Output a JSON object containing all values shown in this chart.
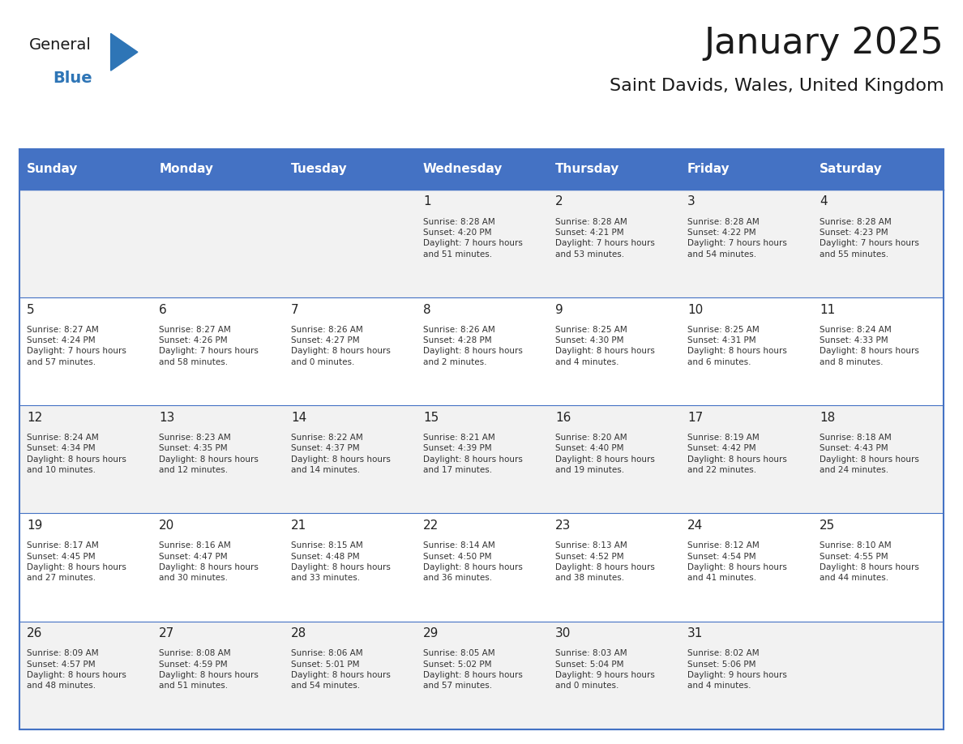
{
  "title": "January 2025",
  "subtitle": "Saint Davids, Wales, United Kingdom",
  "header_color": "#4472C4",
  "header_text_color": "#FFFFFF",
  "cell_bg_even": "#F2F2F2",
  "cell_bg_odd": "#FFFFFF",
  "border_color": "#4472C4",
  "day_names": [
    "Sunday",
    "Monday",
    "Tuesday",
    "Wednesday",
    "Thursday",
    "Friday",
    "Saturday"
  ],
  "title_color": "#1a1a1a",
  "subtitle_color": "#1a1a1a",
  "cell_text_color": "#333333",
  "day_num_color": "#222222",
  "calendar": [
    [
      null,
      null,
      null,
      {
        "day": 1,
        "sunrise": "8:28 AM",
        "sunset": "4:20 PM",
        "daylight": "7 hours and 51 minutes"
      },
      {
        "day": 2,
        "sunrise": "8:28 AM",
        "sunset": "4:21 PM",
        "daylight": "7 hours and 53 minutes"
      },
      {
        "day": 3,
        "sunrise": "8:28 AM",
        "sunset": "4:22 PM",
        "daylight": "7 hours and 54 minutes"
      },
      {
        "day": 4,
        "sunrise": "8:28 AM",
        "sunset": "4:23 PM",
        "daylight": "7 hours and 55 minutes"
      }
    ],
    [
      {
        "day": 5,
        "sunrise": "8:27 AM",
        "sunset": "4:24 PM",
        "daylight": "7 hours and 57 minutes"
      },
      {
        "day": 6,
        "sunrise": "8:27 AM",
        "sunset": "4:26 PM",
        "daylight": "7 hours and 58 minutes"
      },
      {
        "day": 7,
        "sunrise": "8:26 AM",
        "sunset": "4:27 PM",
        "daylight": "8 hours and 0 minutes"
      },
      {
        "day": 8,
        "sunrise": "8:26 AM",
        "sunset": "4:28 PM",
        "daylight": "8 hours and 2 minutes"
      },
      {
        "day": 9,
        "sunrise": "8:25 AM",
        "sunset": "4:30 PM",
        "daylight": "8 hours and 4 minutes"
      },
      {
        "day": 10,
        "sunrise": "8:25 AM",
        "sunset": "4:31 PM",
        "daylight": "8 hours and 6 minutes"
      },
      {
        "day": 11,
        "sunrise": "8:24 AM",
        "sunset": "4:33 PM",
        "daylight": "8 hours and 8 minutes"
      }
    ],
    [
      {
        "day": 12,
        "sunrise": "8:24 AM",
        "sunset": "4:34 PM",
        "daylight": "8 hours and 10 minutes"
      },
      {
        "day": 13,
        "sunrise": "8:23 AM",
        "sunset": "4:35 PM",
        "daylight": "8 hours and 12 minutes"
      },
      {
        "day": 14,
        "sunrise": "8:22 AM",
        "sunset": "4:37 PM",
        "daylight": "8 hours and 14 minutes"
      },
      {
        "day": 15,
        "sunrise": "8:21 AM",
        "sunset": "4:39 PM",
        "daylight": "8 hours and 17 minutes"
      },
      {
        "day": 16,
        "sunrise": "8:20 AM",
        "sunset": "4:40 PM",
        "daylight": "8 hours and 19 minutes"
      },
      {
        "day": 17,
        "sunrise": "8:19 AM",
        "sunset": "4:42 PM",
        "daylight": "8 hours and 22 minutes"
      },
      {
        "day": 18,
        "sunrise": "8:18 AM",
        "sunset": "4:43 PM",
        "daylight": "8 hours and 24 minutes"
      }
    ],
    [
      {
        "day": 19,
        "sunrise": "8:17 AM",
        "sunset": "4:45 PM",
        "daylight": "8 hours and 27 minutes"
      },
      {
        "day": 20,
        "sunrise": "8:16 AM",
        "sunset": "4:47 PM",
        "daylight": "8 hours and 30 minutes"
      },
      {
        "day": 21,
        "sunrise": "8:15 AM",
        "sunset": "4:48 PM",
        "daylight": "8 hours and 33 minutes"
      },
      {
        "day": 22,
        "sunrise": "8:14 AM",
        "sunset": "4:50 PM",
        "daylight": "8 hours and 36 minutes"
      },
      {
        "day": 23,
        "sunrise": "8:13 AM",
        "sunset": "4:52 PM",
        "daylight": "8 hours and 38 minutes"
      },
      {
        "day": 24,
        "sunrise": "8:12 AM",
        "sunset": "4:54 PM",
        "daylight": "8 hours and 41 minutes"
      },
      {
        "day": 25,
        "sunrise": "8:10 AM",
        "sunset": "4:55 PM",
        "daylight": "8 hours and 44 minutes"
      }
    ],
    [
      {
        "day": 26,
        "sunrise": "8:09 AM",
        "sunset": "4:57 PM",
        "daylight": "8 hours and 48 minutes"
      },
      {
        "day": 27,
        "sunrise": "8:08 AM",
        "sunset": "4:59 PM",
        "daylight": "8 hours and 51 minutes"
      },
      {
        "day": 28,
        "sunrise": "8:06 AM",
        "sunset": "5:01 PM",
        "daylight": "8 hours and 54 minutes"
      },
      {
        "day": 29,
        "sunrise": "8:05 AM",
        "sunset": "5:02 PM",
        "daylight": "8 hours and 57 minutes"
      },
      {
        "day": 30,
        "sunrise": "8:03 AM",
        "sunset": "5:04 PM",
        "daylight": "9 hours and 0 minutes"
      },
      {
        "day": 31,
        "sunrise": "8:02 AM",
        "sunset": "5:06 PM",
        "daylight": "9 hours and 4 minutes"
      },
      null
    ]
  ],
  "logo_general_color": "#1a1a1a",
  "logo_blue_color": "#2E75B6",
  "logo_triangle_color": "#2E75B6"
}
